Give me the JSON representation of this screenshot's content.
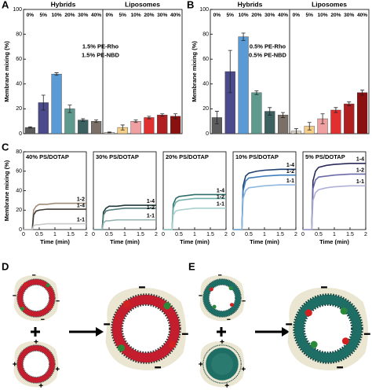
{
  "chart_data": [
    {
      "type": "bar",
      "panel_label": "A",
      "y_label": "Membrane mixing (%)",
      "group_labels": [
        "Hybrids",
        "Liposomes"
      ],
      "categories": [
        "0%",
        "5%",
        "10%",
        "20%",
        "30%",
        "40%",
        "0%",
        "5%",
        "10%",
        "20%",
        "30%",
        "40%"
      ],
      "values": [
        5,
        25,
        48,
        20,
        11,
        10,
        1,
        5,
        10,
        13,
        15,
        14
      ],
      "errors": [
        0.5,
        6,
        1,
        3,
        1,
        1,
        0.3,
        2,
        1,
        1,
        1,
        2
      ],
      "colors": [
        "#5c5c5c",
        "#4a4a8c",
        "#5b9bd5",
        "#5f9a8e",
        "#3d6060",
        "#7a7068",
        "#d9d0c0",
        "#f5cf8a",
        "#f0a0a0",
        "#e03030",
        "#b02020",
        "#8b1010"
      ],
      "annotation": [
        "1.5% PE-Rho",
        "1.5% PE-NBD"
      ],
      "ylim": [
        0,
        100
      ],
      "yticks": [
        0,
        20,
        40,
        60,
        80,
        100
      ]
    },
    {
      "type": "bar",
      "panel_label": "B",
      "y_label": "Membrane mixing (%)",
      "group_labels": [
        "Hybrids",
        "Liposomes"
      ],
      "categories": [
        "0%",
        "5%",
        "10%",
        "20%",
        "30%",
        "40%",
        "0%",
        "5%",
        "10%",
        "20%",
        "30%",
        "40%"
      ],
      "values": [
        13,
        50,
        78,
        33,
        18,
        15,
        2,
        6,
        12,
        19,
        24,
        33
      ],
      "errors": [
        5,
        17,
        3,
        1.5,
        3,
        2,
        2,
        3,
        4,
        2,
        1.5,
        2
      ],
      "colors": [
        "#5c5c5c",
        "#4a4a8c",
        "#5b9bd5",
        "#5f9a8e",
        "#3d6060",
        "#7a7068",
        "#d9d0c0",
        "#f5cf8a",
        "#f0a0a0",
        "#e03030",
        "#b02020",
        "#8b1010"
      ],
      "annotation": [
        "0.5% PE-Rho",
        "0.5% PE-NBD"
      ],
      "ylim": [
        0,
        100
      ],
      "yticks": [
        0,
        20,
        40,
        60,
        80,
        100
      ]
    },
    {
      "type": "line",
      "panel_label": "C",
      "title": "40% PS/DOTAP",
      "title_color": "#8a7a6a",
      "y_label": "Membrane mixing (%)",
      "x_label": "Time (min)",
      "x": [
        0,
        0.28,
        0.32,
        0.4,
        0.5,
        0.75,
        1,
        1.5,
        2
      ],
      "series": [
        {
          "name": "1-2",
          "color": "#a08c78",
          "values": [
            0,
            0,
            20,
            24,
            26,
            26,
            27,
            27,
            27
          ]
        },
        {
          "name": "1-4",
          "color": "#3e3a36",
          "values": [
            0,
            0,
            15,
            19,
            20,
            21,
            21,
            21,
            21
          ]
        },
        {
          "name": "1-1",
          "color": "#c9c9c9",
          "values": [
            0,
            0,
            4,
            5,
            5,
            6,
            6,
            6,
            6
          ]
        }
      ],
      "xlim": [
        0,
        2
      ],
      "xticks": [
        0,
        0.5,
        1,
        1.5,
        2
      ],
      "ylim": [
        0,
        80
      ],
      "yticks": [
        0,
        20,
        40,
        60,
        80
      ]
    },
    {
      "type": "line",
      "title": "30% PS/DOTAP",
      "title_color": "#2f5050",
      "x_label": "Time (min)",
      "x": [
        0,
        0.28,
        0.32,
        0.4,
        0.5,
        0.75,
        1,
        1.5,
        2
      ],
      "series": [
        {
          "name": "1-4",
          "color": "#1f3a3a",
          "values": [
            0,
            0,
            18,
            22,
            24,
            24,
            25,
            25,
            25
          ]
        },
        {
          "name": "1-2",
          "color": "#4f7a78",
          "values": [
            0,
            0,
            15,
            19,
            20,
            21,
            22,
            22,
            22
          ]
        },
        {
          "name": "1-1",
          "color": "#8fb0ae",
          "values": [
            0,
            0,
            7,
            9,
            9,
            10,
            10,
            10,
            10
          ]
        }
      ],
      "xlim": [
        0,
        2
      ],
      "xticks": [
        0,
        0.5,
        1,
        1.5,
        2
      ],
      "ylim": [
        0,
        80
      ]
    },
    {
      "type": "line",
      "title": "20% PS/DOTAP",
      "title_color": "#4f9a96",
      "x_label": "Time (min)",
      "x": [
        0,
        0.28,
        0.32,
        0.4,
        0.5,
        0.75,
        1,
        1.5,
        2
      ],
      "series": [
        {
          "name": "1-4",
          "color": "#2f6e6a",
          "values": [
            0,
            0,
            26,
            32,
            34,
            35,
            36,
            36,
            36
          ]
        },
        {
          "name": "1-2",
          "color": "#6fb0aa",
          "values": [
            0,
            0,
            22,
            28,
            30,
            31,
            32,
            32,
            32
          ]
        },
        {
          "name": "1-1",
          "color": "#a8d0cc",
          "values": [
            0,
            0,
            15,
            19,
            20,
            21,
            22,
            22,
            22
          ]
        }
      ],
      "xlim": [
        0,
        2
      ],
      "xticks": [
        0,
        0.5,
        1,
        1.5,
        2
      ],
      "ylim": [
        0,
        80
      ]
    },
    {
      "type": "line",
      "title": "10% PS/DOTAP",
      "title_color": "#3f80c0",
      "x_label": "Time (min)",
      "x": [
        0,
        0.28,
        0.32,
        0.4,
        0.5,
        0.75,
        1,
        1.5,
        2
      ],
      "series": [
        {
          "name": "1-4",
          "color": "#1f3f6f",
          "values": [
            0,
            0,
            45,
            55,
            58,
            60,
            61,
            62,
            62
          ]
        },
        {
          "name": "1-2",
          "color": "#3f7fbf",
          "values": [
            0,
            0,
            40,
            50,
            53,
            54,
            55,
            56,
            56
          ]
        },
        {
          "name": "1-1",
          "color": "#8fb8e0",
          "values": [
            0,
            0,
            32,
            40,
            43,
            44,
            45,
            46,
            46
          ]
        }
      ],
      "xlim": [
        0,
        2
      ],
      "xticks": [
        0,
        0.5,
        1,
        1.5,
        2
      ],
      "ylim": [
        0,
        80
      ]
    },
    {
      "type": "line",
      "title": "5% PS/DOTAP",
      "title_color": "#5a4a9a",
      "x_label": "Time (min)",
      "x": [
        0,
        0.28,
        0.32,
        0.4,
        0.5,
        0.75,
        1,
        1.5,
        2
      ],
      "series": [
        {
          "name": "1-4",
          "color": "#2a2a5a",
          "values": [
            0,
            0,
            50,
            60,
            64,
            66,
            67,
            68,
            68
          ]
        },
        {
          "name": "1-2",
          "color": "#6a6aaa",
          "values": [
            0,
            0,
            42,
            51,
            54,
            55,
            56,
            57,
            57
          ]
        },
        {
          "name": "1-1",
          "color": "#b0b0d8",
          "values": [
            0,
            0,
            30,
            38,
            41,
            43,
            44,
            45,
            45
          ]
        }
      ],
      "xlim": [
        0,
        2
      ],
      "xticks": [
        0,
        0.5,
        1,
        1.5,
        2
      ],
      "ylim": [
        0,
        80
      ]
    }
  ],
  "schematics": [
    {
      "panel_label": "D"
    },
    {
      "panel_label": "E"
    }
  ]
}
